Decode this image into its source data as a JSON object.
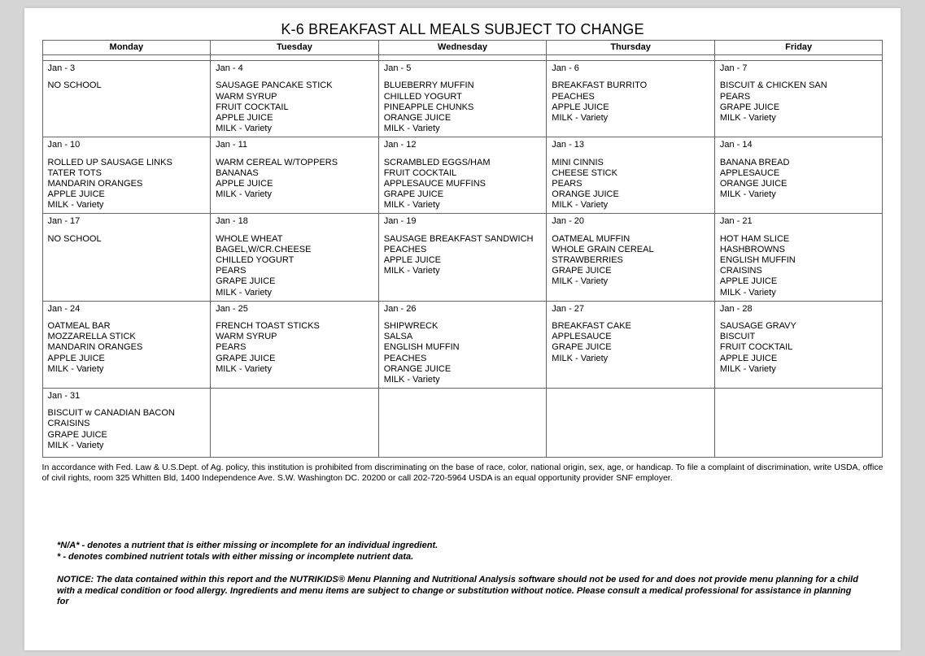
{
  "title": "K-6 BREAKFAST ALL MEALS SUBJECT TO CHANGE",
  "headers": [
    "Monday",
    "Tuesday",
    "Wednesday",
    "Thursday",
    "Friday"
  ],
  "weeks": [
    [
      {
        "date": "Jan - 3",
        "items": [
          "NO SCHOOL"
        ]
      },
      {
        "date": "Jan - 4",
        "items": [
          "SAUSAGE PANCAKE STICK",
          "WARM SYRUP",
          "FRUIT COCKTAIL",
          "APPLE JUICE",
          "MILK - Variety"
        ]
      },
      {
        "date": "Jan - 5",
        "items": [
          "BLUEBERRY MUFFIN",
          "CHILLED YOGURT",
          "PINEAPPLE CHUNKS",
          "ORANGE JUICE",
          "MILK - Variety"
        ]
      },
      {
        "date": "Jan - 6",
        "items": [
          "BREAKFAST BURRITO",
          "PEACHES",
          "APPLE JUICE",
          "MILK - Variety"
        ]
      },
      {
        "date": "Jan - 7",
        "items": [
          "BISCUIT & CHICKEN SAN",
          "PEARS",
          "GRAPE JUICE",
          "MILK - Variety"
        ]
      }
    ],
    [
      {
        "date": "Jan - 10",
        "items": [
          "ROLLED UP SAUSAGE LINKS",
          "TATER TOTS",
          "MANDARIN ORANGES",
          "APPLE JUICE",
          "MILK - Variety"
        ]
      },
      {
        "date": "Jan - 11",
        "items": [
          "WARM CEREAL W/TOPPERS",
          "BANANAS",
          "APPLE JUICE",
          "MILK - Variety"
        ]
      },
      {
        "date": "Jan - 12",
        "items": [
          "SCRAMBLED EGGS/HAM",
          "FRUIT COCKTAIL",
          "APPLESAUCE MUFFINS",
          "GRAPE JUICE",
          "MILK - Variety"
        ]
      },
      {
        "date": "Jan - 13",
        "items": [
          "MINI CINNIS",
          "CHEESE STICK",
          "PEARS",
          "ORANGE JUICE",
          "MILK - Variety"
        ]
      },
      {
        "date": "Jan - 14",
        "items": [
          "BANANA BREAD",
          "APPLESAUCE",
          "ORANGE JUICE",
          "MILK - Variety"
        ]
      }
    ],
    [
      {
        "date": "Jan - 17",
        "items": [
          "NO SCHOOL"
        ]
      },
      {
        "date": "Jan - 18",
        "items": [
          "WHOLE WHEAT",
          "BAGEL,W/CR.CHEESE",
          "CHILLED YOGURT",
          "PEARS",
          "GRAPE JUICE",
          "MILK - Variety"
        ]
      },
      {
        "date": "Jan - 19",
        "items": [
          "SAUSAGE BREAKFAST SANDWICH",
          "PEACHES",
          "APPLE JUICE",
          "MILK - Variety"
        ]
      },
      {
        "date": "Jan - 20",
        "items": [
          "OATMEAL MUFFIN",
          "WHOLE GRAIN CEREAL",
          "STRAWBERRIES",
          "GRAPE JUICE",
          "MILK - Variety"
        ]
      },
      {
        "date": "Jan - 21",
        "items": [
          "HOT HAM SLICE",
          "HASHBROWNS",
          "ENGLISH MUFFIN",
          "CRAISINS",
          "APPLE JUICE",
          "MILK - Variety"
        ]
      }
    ],
    [
      {
        "date": "Jan - 24",
        "items": [
          "OATMEAL BAR",
          "MOZZARELLA STICK",
          "MANDARIN ORANGES",
          "APPLE JUICE",
          "MILK - Variety"
        ]
      },
      {
        "date": "Jan - 25",
        "items": [
          "FRENCH TOAST STICKS",
          "WARM SYRUP",
          "PEARS",
          "GRAPE JUICE",
          "MILK - Variety"
        ]
      },
      {
        "date": "Jan - 26",
        "items": [
          "SHIPWRECK",
          "SALSA",
          "ENGLISH MUFFIN",
          "PEACHES",
          "ORANGE JUICE",
          "MILK - Variety"
        ]
      },
      {
        "date": "Jan - 27",
        "items": [
          "BREAKFAST CAKE",
          "APPLESAUCE",
          "GRAPE JUICE",
          "MILK - Variety"
        ]
      },
      {
        "date": "Jan - 28",
        "items": [
          "SAUSAGE GRAVY",
          "BISCUIT",
          "FRUIT COCKTAIL",
          "APPLE JUICE",
          "MILK - Variety"
        ]
      }
    ],
    [
      {
        "date": "Jan - 31",
        "items": [
          "BISCUIT w CANADIAN BACON",
          "CRAISINS",
          "GRAPE JUICE",
          "MILK - Variety"
        ]
      },
      {
        "date": "",
        "items": []
      },
      {
        "date": "",
        "items": []
      },
      {
        "date": "",
        "items": []
      },
      {
        "date": "",
        "items": []
      }
    ]
  ],
  "compliance": "In accordance with Fed. Law & U.S.Dept. of Ag. policy, this institution is prohibited from discriminating on the base of race, color, national origin, sex, age, or handicap. To file a complaint of discrimination, write USDA, office of civil rights, room 325 Whitten Bld, 1400 Independence Ave. S.W. Washington DC. 20200 or call 202-720-5964 USDA is an equal opportunity provider SNF employer.",
  "na_note_1": "*N/A* - denotes a nutrient that is either missing or incomplete for an individual ingredient.",
  "na_note_2": "* - denotes combined nutrient totals with either missing or incomplete nutrient data.",
  "notice": "NOTICE:  The data contained within this report and the NUTRIKIDS® Menu Planning and Nutritional Analysis software should not be used for and does not provide menu planning for a child with a  medical condition or food allergy.  Ingredients and menu items are subject to change or substitution without notice.  Please consult a medical professional for assistance in planning for"
}
